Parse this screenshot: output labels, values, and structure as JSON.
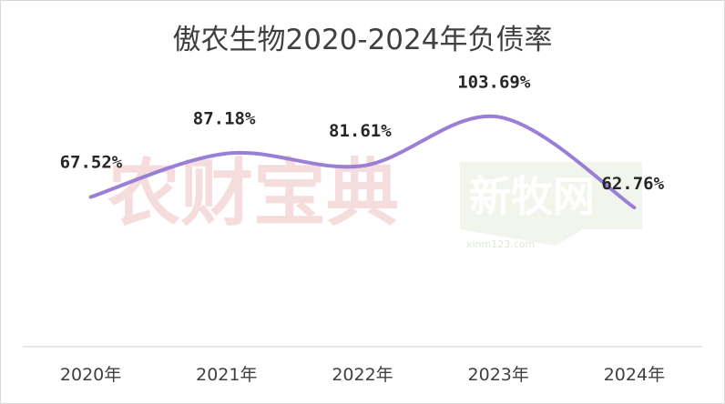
{
  "chart_data": {
    "type": "line",
    "title": "傲农生物2020-2024年负债率",
    "categories": [
      "2020年",
      "2021年",
      "2022年",
      "2023年",
      "2024年"
    ],
    "series": [
      {
        "values": [
          67.52,
          87.18,
          81.61,
          103.69,
          62.76
        ],
        "labels": [
          "67.52%",
          "87.18%",
          "81.61%",
          "103.69%",
          "62.76%"
        ],
        "color": "#9a7fd6"
      }
    ],
    "xlabel": "",
    "ylabel": "",
    "ylim": [
      0,
      140
    ],
    "grid": false,
    "legend": "none"
  },
  "watermarks": {
    "left_text": "农财宝典",
    "right_text": "新牧网",
    "right_url": "xinm123.com"
  }
}
